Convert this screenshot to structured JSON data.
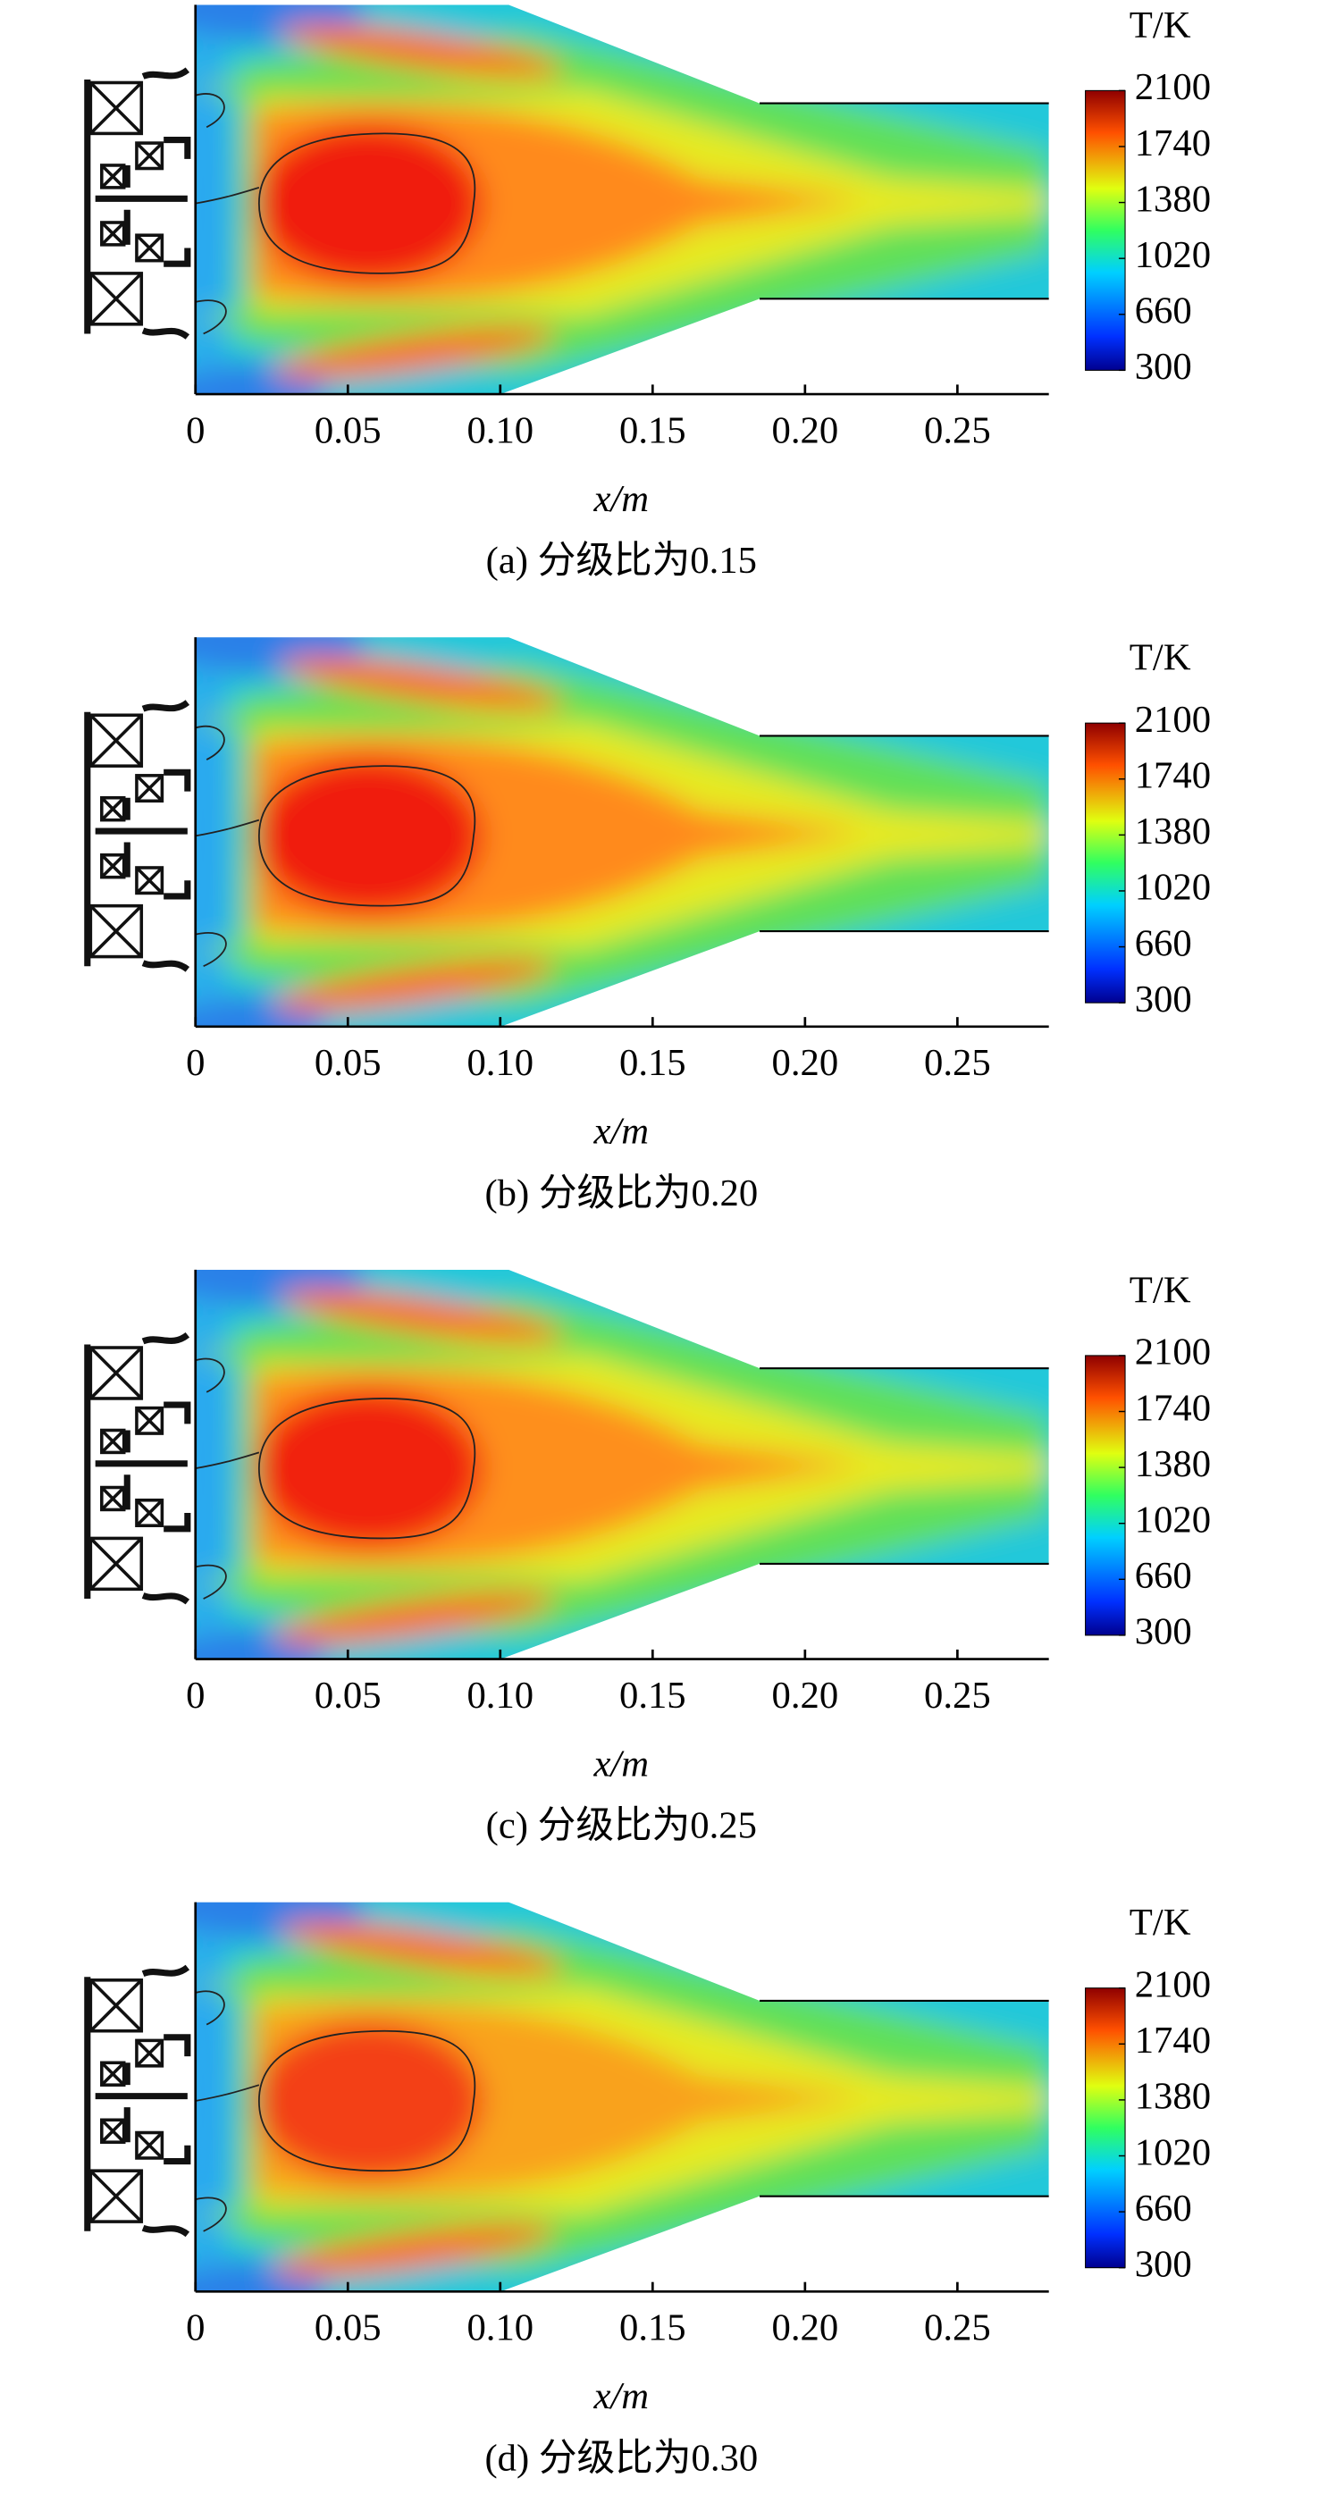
{
  "chart_data": [
    {
      "type": "contour",
      "colorbar_label": "T/K",
      "xlabel": "x/m",
      "caption": "(a) 分级比为0.15",
      "xlim": [
        0,
        0.28
      ],
      "xticks": [
        0,
        0.05,
        {
          "value": 0.1,
          "label": "0.10"
        },
        0.15,
        {
          "value": 0.2,
          "label": "0.20"
        },
        0.25
      ],
      "clim": [
        300,
        2100
      ],
      "cticks": [
        300,
        660,
        1020,
        1380,
        1740,
        2100
      ]
    },
    {
      "type": "contour",
      "colorbar_label": "T/K",
      "xlabel": "x/m",
      "caption": "(b) 分级比为0.20",
      "xlim": [
        0,
        0.28
      ],
      "xticks": [
        0,
        0.05,
        {
          "value": 0.1,
          "label": "0.10"
        },
        0.15,
        {
          "value": 0.2,
          "label": "0.20"
        },
        0.25
      ],
      "clim": [
        300,
        2100
      ],
      "cticks": [
        300,
        660,
        1020,
        1380,
        1740,
        2100
      ]
    },
    {
      "type": "contour",
      "colorbar_label": "T/K",
      "xlabel": "x/m",
      "caption": "(c) 分级比为0.25",
      "xlim": [
        0,
        0.28
      ],
      "xticks": [
        0,
        0.05,
        {
          "value": 0.1,
          "label": "0.10"
        },
        0.15,
        {
          "value": 0.2,
          "label": "0.20"
        },
        0.25
      ],
      "clim": [
        300,
        2100
      ],
      "cticks": [
        300,
        660,
        1020,
        1380,
        1740,
        2100
      ]
    },
    {
      "type": "contour",
      "colorbar_label": "T/K",
      "xlabel": "x/m",
      "caption": "(d) 分级比为0.30",
      "xlim": [
        0,
        0.28
      ],
      "xticks": [
        0,
        0.05,
        {
          "value": 0.1,
          "label": "0.10"
        },
        0.15,
        {
          "value": 0.2,
          "label": "0.20"
        },
        0.25
      ],
      "clim": [
        300,
        2100
      ],
      "cticks": [
        300,
        660,
        1020,
        1380,
        1740,
        2100
      ]
    }
  ]
}
